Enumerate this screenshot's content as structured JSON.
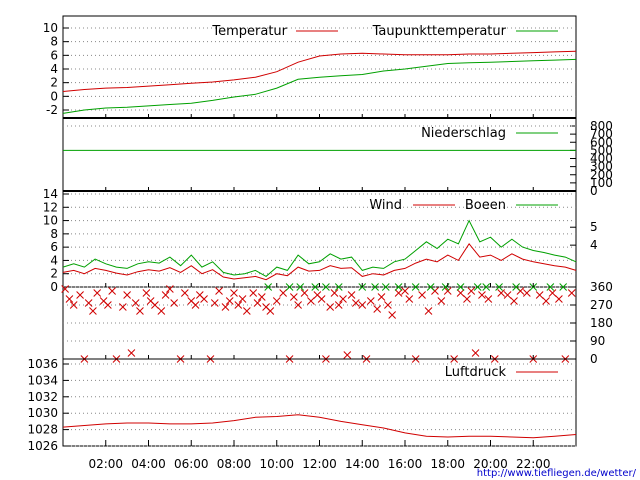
{
  "url_text": "http://www.tiefliegen.de/wetter/",
  "colors": {
    "red": "#d00000",
    "green": "#00a000",
    "grid": "#888888",
    "axis": "#000000"
  },
  "x_axis": {
    "range": [
      "00:00",
      "24:00"
    ],
    "tick_labels": [
      "02:00",
      "04:00",
      "06:00",
      "08:00",
      "10:00",
      "12:00",
      "14:00",
      "16:00",
      "18:00",
      "20:00",
      "22:00"
    ],
    "tick_hours": [
      2,
      4,
      6,
      8,
      10,
      12,
      14,
      16,
      18,
      20,
      22
    ]
  },
  "chart_data": [
    {
      "type": "line",
      "key": "temperature",
      "legend_position": "top-right",
      "ylim": [
        -3,
        12
      ],
      "y_ticks": [
        -2,
        0,
        2,
        4,
        6,
        8,
        10
      ],
      "y_tick_labels": [
        "-2",
        "0",
        "2",
        "4",
        "6",
        "8",
        "10"
      ],
      "grid": true,
      "hours": [
        0,
        1,
        2,
        3,
        4,
        5,
        6,
        7,
        8,
        9,
        10,
        11,
        12,
        13,
        14,
        15,
        16,
        17,
        18,
        19,
        20,
        21,
        22,
        23,
        24
      ],
      "series": [
        {
          "name": "Temperatur",
          "color": "red",
          "values": [
            0.7,
            1.0,
            1.2,
            1.3,
            1.5,
            1.7,
            1.9,
            2.1,
            2.4,
            2.8,
            3.6,
            5.0,
            5.9,
            6.2,
            6.3,
            6.2,
            6.1,
            6.1,
            6.1,
            6.2,
            6.2,
            6.3,
            6.4,
            6.5,
            6.6
          ]
        },
        {
          "name": "Taupunkttemperatur",
          "color": "green",
          "values": [
            -2.5,
            -2.0,
            -1.7,
            -1.6,
            -1.4,
            -1.2,
            -1.0,
            -0.6,
            -0.1,
            0.3,
            1.2,
            2.5,
            2.8,
            3.0,
            3.2,
            3.7,
            4.0,
            4.4,
            4.8,
            4.9,
            5.0,
            5.1,
            5.2,
            5.3,
            5.4
          ]
        }
      ]
    },
    {
      "type": "line",
      "key": "precipitation",
      "legend_position": "top-right",
      "y2lim": [
        0,
        800
      ],
      "y2_ticks": [
        0,
        100,
        200,
        300,
        400,
        500,
        600,
        700,
        800
      ],
      "y2_tick_labels": [
        "0",
        "100",
        "200",
        "300",
        "400",
        "500",
        "600",
        "700",
        "800"
      ],
      "grid": true,
      "series": [
        {
          "name": "Niederschlag",
          "color": "green",
          "hours": [
            0,
            24
          ],
          "values": [
            500,
            500
          ]
        }
      ]
    },
    {
      "type": "line",
      "key": "wind",
      "legend_position": "top-right",
      "ylim": [
        0,
        14
      ],
      "y_ticks": [
        0,
        2,
        4,
        6,
        8,
        10,
        12,
        14
      ],
      "y_tick_labels": [
        "0",
        "2",
        "4",
        "6",
        "8",
        "10",
        "12",
        "14"
      ],
      "y2_ticks": [
        4,
        5
      ],
      "y2_tick_labels": [
        "4",
        "5"
      ],
      "y2_ticks_at_left_value": [
        6.3,
        9.0
      ],
      "grid": true,
      "hours": [
        0,
        0.5,
        1,
        1.5,
        2,
        2.5,
        3,
        3.5,
        4,
        4.5,
        5,
        5.5,
        6,
        6.5,
        7,
        7.5,
        8,
        8.5,
        9,
        9.5,
        10,
        10.5,
        11,
        11.5,
        12,
        12.5,
        13,
        13.5,
        14,
        14.5,
        15,
        15.5,
        16,
        16.5,
        17,
        17.5,
        18,
        18.5,
        19,
        19.5,
        20,
        20.5,
        21,
        21.5,
        22,
        22.5,
        23,
        23.5,
        24
      ],
      "series": [
        {
          "name": "Wind",
          "color": "red",
          "values": [
            2.2,
            2.5,
            2.0,
            2.8,
            2.5,
            2.1,
            1.8,
            2.3,
            2.6,
            2.4,
            2.9,
            2.2,
            3.2,
            2.0,
            2.6,
            1.5,
            1.2,
            1.4,
            1.6,
            1.1,
            2.0,
            1.7,
            3.0,
            2.4,
            2.5,
            3.2,
            2.8,
            2.9,
            1.6,
            2.0,
            1.8,
            2.5,
            2.8,
            3.6,
            4.2,
            3.8,
            4.8,
            4.0,
            6.5,
            4.5,
            4.8,
            4.0,
            5.0,
            4.2,
            3.8,
            3.5,
            3.2,
            3.0,
            2.5
          ]
        },
        {
          "name": "Boeen",
          "color": "green",
          "values": [
            3.0,
            3.5,
            3.0,
            4.2,
            3.5,
            3.0,
            2.8,
            3.5,
            3.8,
            3.6,
            4.5,
            3.2,
            4.8,
            3.0,
            3.8,
            2.2,
            1.8,
            2.0,
            2.5,
            1.6,
            3.0,
            2.5,
            4.8,
            3.5,
            3.8,
            5.0,
            4.2,
            4.5,
            2.5,
            3.0,
            2.8,
            3.8,
            4.2,
            5.5,
            6.8,
            5.8,
            7.2,
            6.5,
            10.0,
            6.8,
            7.5,
            6.0,
            7.2,
            6.0,
            5.5,
            5.2,
            4.8,
            4.5,
            3.8
          ]
        }
      ]
    },
    {
      "type": "scatter",
      "key": "wind_direction",
      "y2lim": [
        0,
        360
      ],
      "y2_ticks": [
        0,
        90,
        180,
        270,
        360
      ],
      "y2_tick_labels": [
        "0",
        "90",
        "180",
        "270",
        "360"
      ],
      "grid": true,
      "marker": "x",
      "series": [
        {
          "color": "red",
          "points": [
            [
              0.1,
              350
            ],
            [
              0.3,
              300
            ],
            [
              0.5,
              270
            ],
            [
              0.8,
              320
            ],
            [
              1.0,
              0
            ],
            [
              1.2,
              280
            ],
            [
              1.4,
              240
            ],
            [
              1.6,
              330
            ],
            [
              1.9,
              290
            ],
            [
              2.1,
              270
            ],
            [
              2.3,
              340
            ],
            [
              2.5,
              0
            ],
            [
              2.8,
              260
            ],
            [
              3.0,
              320
            ],
            [
              3.2,
              30
            ],
            [
              3.4,
              280
            ],
            [
              3.6,
              240
            ],
            [
              3.9,
              330
            ],
            [
              4.1,
              290
            ],
            [
              4.3,
              270
            ],
            [
              4.6,
              240
            ],
            [
              4.8,
              320
            ],
            [
              5.0,
              350
            ],
            [
              5.2,
              280
            ],
            [
              5.5,
              0
            ],
            [
              5.7,
              330
            ],
            [
              6.0,
              290
            ],
            [
              6.2,
              270
            ],
            [
              6.4,
              320
            ],
            [
              6.6,
              300
            ],
            [
              6.9,
              0
            ],
            [
              7.1,
              280
            ],
            [
              7.3,
              340
            ],
            [
              7.6,
              260
            ],
            [
              7.8,
              290
            ],
            [
              8.0,
              330
            ],
            [
              8.2,
              270
            ],
            [
              8.4,
              300
            ],
            [
              8.6,
              240
            ],
            [
              8.9,
              330
            ],
            [
              9.1,
              280
            ],
            [
              9.3,
              310
            ],
            [
              9.5,
              260
            ],
            [
              9.7,
              240
            ],
            [
              10.0,
              290
            ],
            [
              10.3,
              330
            ],
            [
              10.6,
              0
            ],
            [
              10.8,
              310
            ],
            [
              11.0,
              270
            ],
            [
              11.3,
              330
            ],
            [
              11.6,
              290
            ],
            [
              11.9,
              320
            ],
            [
              12.1,
              300
            ],
            [
              12.3,
              0
            ],
            [
              12.5,
              260
            ],
            [
              12.7,
              330
            ],
            [
              12.9,
              270
            ],
            [
              13.1,
              300
            ],
            [
              13.3,
              20
            ],
            [
              13.5,
              320
            ],
            [
              13.7,
              280
            ],
            [
              14.0,
              270
            ],
            [
              14.2,
              0
            ],
            [
              14.4,
              290
            ],
            [
              14.7,
              250
            ],
            [
              14.9,
              310
            ],
            [
              15.2,
              270
            ],
            [
              15.4,
              220
            ],
            [
              15.7,
              330
            ],
            [
              16.0,
              340
            ],
            [
              16.2,
              300
            ],
            [
              16.5,
              0
            ],
            [
              16.8,
              320
            ],
            [
              17.1,
              240
            ],
            [
              17.4,
              340
            ],
            [
              17.7,
              290
            ],
            [
              18.0,
              340
            ],
            [
              18.3,
              0
            ],
            [
              18.6,
              330
            ],
            [
              18.9,
              300
            ],
            [
              19.1,
              340
            ],
            [
              19.3,
              30
            ],
            [
              19.6,
              320
            ],
            [
              19.9,
              300
            ],
            [
              20.2,
              0
            ],
            [
              20.5,
              330
            ],
            [
              20.8,
              320
            ],
            [
              21.1,
              290
            ],
            [
              21.4,
              340
            ],
            [
              21.7,
              330
            ],
            [
              22.0,
              0
            ],
            [
              22.3,
              320
            ],
            [
              22.6,
              290
            ],
            [
              22.9,
              330
            ],
            [
              23.2,
              300
            ],
            [
              23.5,
              0
            ],
            [
              23.8,
              330
            ]
          ]
        },
        {
          "color": "green",
          "points": [
            [
              9.6,
              360
            ],
            [
              10.6,
              360
            ],
            [
              11.1,
              360
            ],
            [
              11.8,
              360
            ],
            [
              12.3,
              360
            ],
            [
              12.9,
              360
            ],
            [
              14.0,
              360
            ],
            [
              14.6,
              360
            ],
            [
              15.1,
              360
            ],
            [
              15.7,
              360
            ],
            [
              16.5,
              360
            ],
            [
              17.2,
              360
            ],
            [
              17.9,
              360
            ],
            [
              18.6,
              360
            ],
            [
              19.4,
              360
            ],
            [
              19.8,
              360
            ],
            [
              20.4,
              360
            ],
            [
              21.2,
              360
            ],
            [
              22.0,
              360
            ],
            [
              22.8,
              360
            ],
            [
              23.4,
              360
            ]
          ]
        }
      ]
    },
    {
      "type": "line",
      "key": "pressure",
      "legend_position": "top-right",
      "ylim": [
        1026,
        1036
      ],
      "y_ticks": [
        1026,
        1028,
        1030,
        1032,
        1034,
        1036
      ],
      "y_tick_labels": [
        "1026",
        "1028",
        "1030",
        "1032",
        "1034",
        "1036"
      ],
      "grid": true,
      "hours": [
        0,
        1,
        2,
        3,
        4,
        5,
        6,
        7,
        8,
        9,
        10,
        11,
        12,
        13,
        14,
        15,
        16,
        17,
        18,
        19,
        20,
        21,
        22,
        23,
        24
      ],
      "series": [
        {
          "name": "Luftdruck",
          "color": "red",
          "values": [
            1028.3,
            1028.5,
            1028.7,
            1028.8,
            1028.8,
            1028.7,
            1028.7,
            1028.8,
            1029.1,
            1029.5,
            1029.6,
            1029.8,
            1029.5,
            1029.0,
            1028.6,
            1028.2,
            1027.6,
            1027.2,
            1027.1,
            1027.2,
            1027.2,
            1027.1,
            1027.0,
            1027.2,
            1027.4
          ]
        }
      ]
    }
  ]
}
